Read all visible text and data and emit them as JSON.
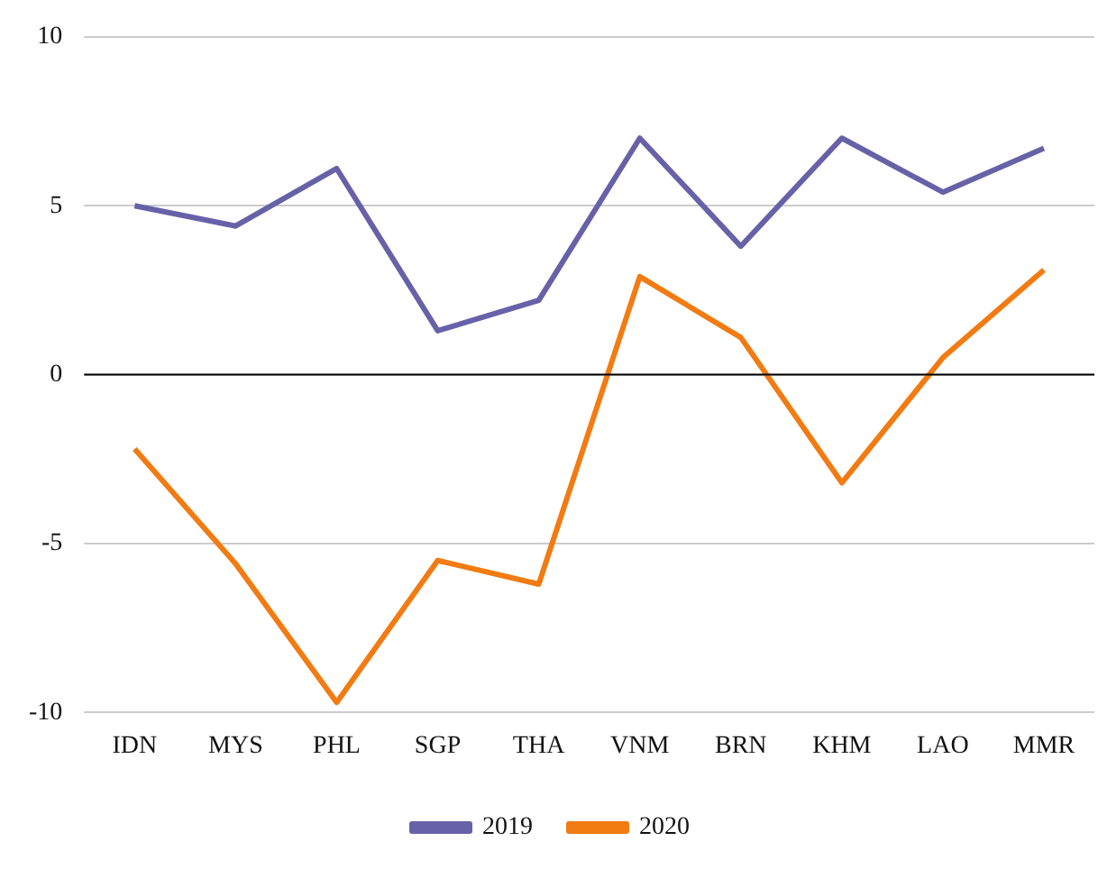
{
  "chart_data": {
    "type": "line",
    "categories": [
      "IDN",
      "MYS",
      "PHL",
      "SGP",
      "THA",
      "VNM",
      "BRN",
      "KHM",
      "LAO",
      "MMR"
    ],
    "series": [
      {
        "name": "2019",
        "color": "#6761a8",
        "values": [
          5.0,
          4.4,
          6.1,
          1.3,
          2.2,
          7.0,
          3.8,
          7.0,
          5.4,
          6.7
        ]
      },
      {
        "name": "2020",
        "color": "#f27b12",
        "values": [
          -2.2,
          -5.6,
          -9.7,
          -5.5,
          -6.2,
          2.9,
          1.1,
          -3.2,
          0.5,
          3.1
        ]
      }
    ],
    "ylim": [
      -10,
      10
    ],
    "yticks": [
      -10,
      -5,
      0,
      5,
      10
    ],
    "grid": "y",
    "legend": "bottom",
    "marker": "none",
    "line_style": "solid",
    "ref_lines": [
      {
        "axis": "y",
        "value": 0,
        "color": "#000000"
      }
    ]
  }
}
